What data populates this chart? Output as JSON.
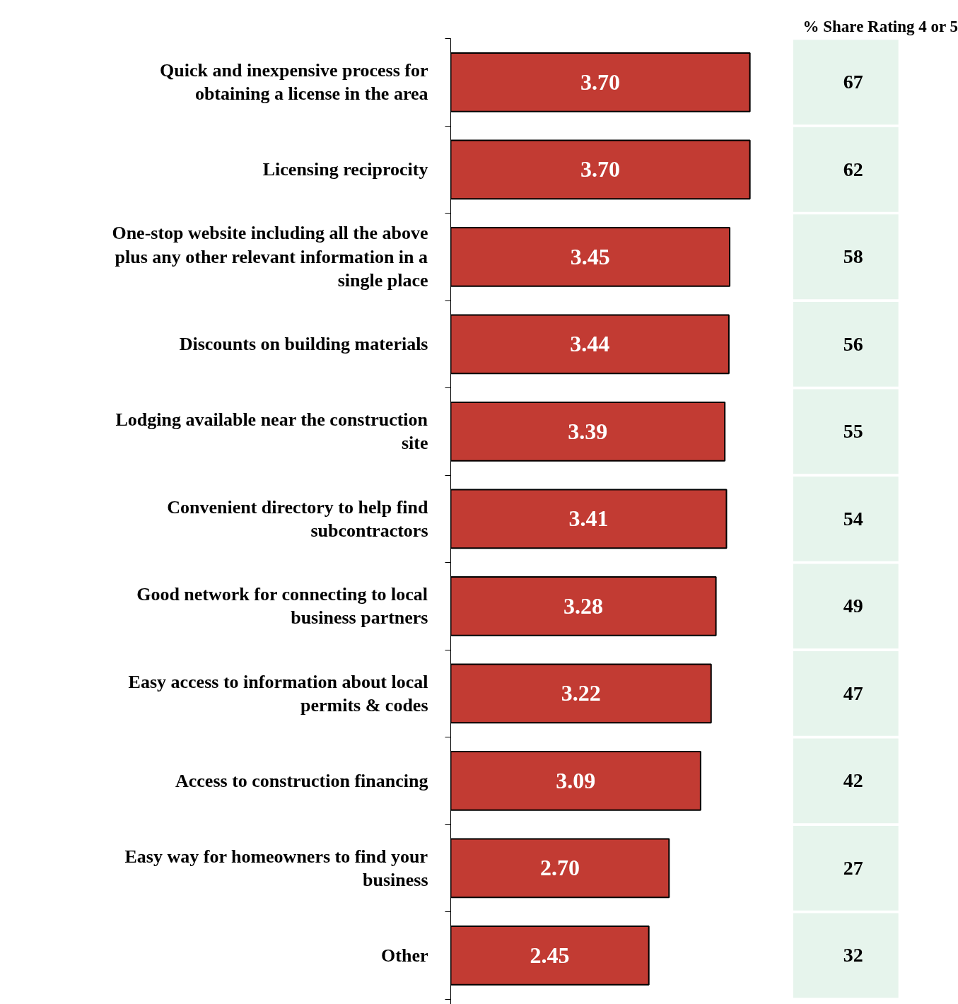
{
  "chart_data": [
    {
      "type": "bar",
      "orientation": "horizontal",
      "categories": [
        "Quick and inexpensive process for obtaining a license in the area",
        "Licensing reciprocity",
        "One-stop website including all the above plus any other relevant information in a single place",
        "Discounts on building materials",
        "Lodging available near the construction site",
        "Convenient directory to help find subcontractors",
        "Good network for connecting to local business partners",
        "Easy access to information about local permits & codes",
        "Access to construction financing",
        "Easy way for homeowners to find your business",
        "Other"
      ],
      "values": [
        3.7,
        3.7,
        3.45,
        3.44,
        3.39,
        3.41,
        3.28,
        3.22,
        3.09,
        2.7,
        2.45
      ],
      "value_labels": [
        "3.70",
        "3.70",
        "3.45",
        "3.44",
        "3.39",
        "3.41",
        "3.28",
        "3.22",
        "3.09",
        "2.70",
        "2.45"
      ],
      "color": "#c23b33",
      "grid": false
    },
    {
      "type": "other",
      "title": "% Share Rating 4 or 5",
      "categories": [
        null,
        null,
        null,
        null,
        null,
        null,
        null,
        null,
        null,
        null,
        null
      ],
      "values": [
        67,
        62,
        58,
        56,
        55,
        54,
        49,
        47,
        42,
        27,
        32
      ],
      "color": "#e6f4ec",
      "data_labels": true
    }
  ]
}
